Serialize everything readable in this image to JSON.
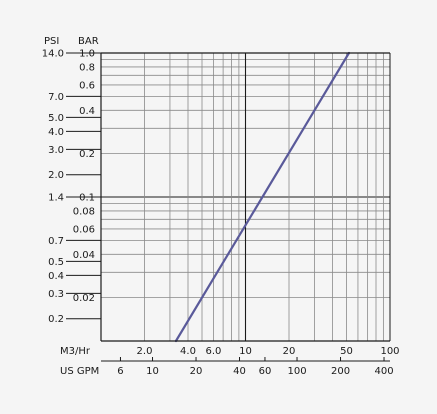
{
  "chart_data": {
    "type": "line",
    "title": "",
    "grid": true,
    "x_scale": "log",
    "y_scale": "log",
    "xlim_m3hr": [
      1,
      100
    ],
    "ylim_bar": [
      0.01,
      1.0
    ],
    "units": {
      "psi": "PSI",
      "bar": "BAR",
      "m3hr": "M3/Hr",
      "gpm": "US GPM"
    },
    "y_ticks_psi": [
      {
        "label": "14.0",
        "value": 14.0
      },
      {
        "label": "7.0",
        "value": 7.0
      },
      {
        "label": "5.0",
        "value": 5.0
      },
      {
        "label": "4.0",
        "value": 4.0
      },
      {
        "label": "3.0",
        "value": 3.0
      },
      {
        "label": "2.0",
        "value": 2.0
      },
      {
        "label": "1.4",
        "value": 1.4
      },
      {
        "label": "0.7",
        "value": 0.7
      },
      {
        "label": "0.5",
        "value": 0.5
      },
      {
        "label": "0.4",
        "value": 0.4
      },
      {
        "label": "0.3",
        "value": 0.3
      },
      {
        "label": "0.2",
        "value": 0.2
      }
    ],
    "y_ticks_bar": [
      {
        "label": "1.0",
        "value": 1.0
      },
      {
        "label": "0.8",
        "value": 0.8
      },
      {
        "label": "0.6",
        "value": 0.6
      },
      {
        "label": "0.4",
        "value": 0.4
      },
      {
        "label": "0.2",
        "value": 0.2
      },
      {
        "label": "0.1",
        "value": 0.1
      },
      {
        "label": "0.08",
        "value": 0.08
      },
      {
        "label": "0.06",
        "value": 0.06
      },
      {
        "label": "0.04",
        "value": 0.04
      },
      {
        "label": "0.02",
        "value": 0.02
      }
    ],
    "x_ticks_m3hr": [
      {
        "label": "2.0",
        "value": 2
      },
      {
        "label": "4.0",
        "value": 4
      },
      {
        "label": "6.0",
        "value": 6
      },
      {
        "label": "10",
        "value": 10
      },
      {
        "label": "20",
        "value": 20
      },
      {
        "label": "50",
        "value": 50
      },
      {
        "label": "100",
        "value": 100
      }
    ],
    "x_ticks_gpm": [
      {
        "label": "6",
        "value": 6
      },
      {
        "label": "10",
        "value": 10
      },
      {
        "label": "20",
        "value": 20
      },
      {
        "label": "40",
        "value": 40
      },
      {
        "label": "60",
        "value": 60
      },
      {
        "label": "100",
        "value": 100
      },
      {
        "label": "200",
        "value": 200
      },
      {
        "label": "400",
        "value": 400
      }
    ],
    "series": [
      {
        "color": "#5a5a9a",
        "points": [
          {
            "x": 3.3,
            "y": 0.01
          },
          {
            "x": 52,
            "y": 1.0
          }
        ]
      }
    ],
    "major_grid_bar": [
      0.1
    ],
    "major_grid_m3hr": [
      10
    ]
  }
}
